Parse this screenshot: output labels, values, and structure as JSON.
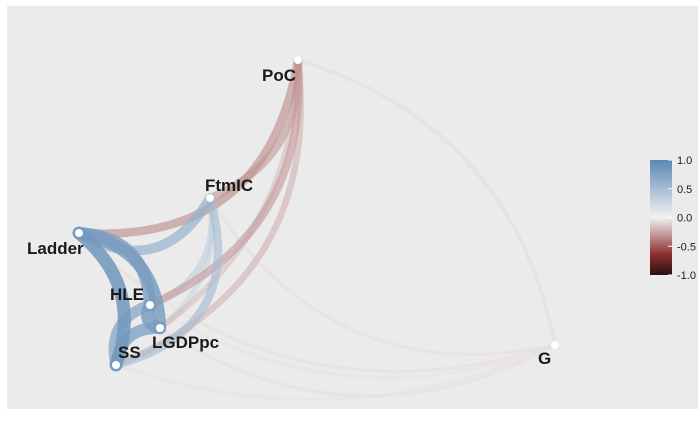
{
  "diagram": {
    "type": "correlation-network",
    "nodes": [
      {
        "id": "PoC",
        "label": "PoC"
      },
      {
        "id": "FtmIC",
        "label": "FtmIC"
      },
      {
        "id": "Ladder",
        "label": "Ladder"
      },
      {
        "id": "HLE",
        "label": "HLE"
      },
      {
        "id": "LGDPpc",
        "label": "LGDPpc"
      },
      {
        "id": "SS",
        "label": "SS"
      },
      {
        "id": "G",
        "label": "G"
      }
    ],
    "edges": [
      {
        "from": "Ladder",
        "to": "SS",
        "r": 0.85
      },
      {
        "from": "Ladder",
        "to": "HLE",
        "r": 0.78
      },
      {
        "from": "Ladder",
        "to": "LGDPpc",
        "r": 0.8
      },
      {
        "from": "Ladder",
        "to": "FtmIC",
        "r": 0.6
      },
      {
        "from": "Ladder",
        "to": "PoC",
        "r": -0.5
      },
      {
        "from": "HLE",
        "to": "SS",
        "r": 0.7
      },
      {
        "from": "HLE",
        "to": "LGDPpc",
        "r": 0.8
      },
      {
        "from": "LGDPpc",
        "to": "SS",
        "r": 0.75
      },
      {
        "from": "SS",
        "to": "FtmIC",
        "r": 0.5
      },
      {
        "from": "HLE",
        "to": "FtmIC",
        "r": 0.35
      },
      {
        "from": "LGDPpc",
        "to": "FtmIC",
        "r": 0.3
      },
      {
        "from": "HLE",
        "to": "PoC",
        "r": -0.45
      },
      {
        "from": "SS",
        "to": "PoC",
        "r": -0.35
      },
      {
        "from": "LGDPpc",
        "to": "PoC",
        "r": -0.3
      },
      {
        "from": "FtmIC",
        "to": "PoC",
        "r": -0.45
      },
      {
        "from": "PoC",
        "to": "G",
        "r": -0.15
      },
      {
        "from": "FtmIC",
        "to": "G",
        "r": -0.12
      },
      {
        "from": "Ladder",
        "to": "G",
        "r": -0.12
      },
      {
        "from": "HLE",
        "to": "G",
        "r": -0.1
      },
      {
        "from": "LGDPpc",
        "to": "G",
        "r": -0.12
      },
      {
        "from": "SS",
        "to": "G",
        "r": -0.1
      }
    ]
  },
  "legend": {
    "ticks": [
      "1.0",
      "0.5",
      "0.0",
      "-0.5",
      "-1.0"
    ],
    "range": [
      -1.0,
      1.0
    ],
    "colors": {
      "positive": "#5b87b4",
      "zero": "#f2f2f2",
      "negative": "#8c2f2f",
      "extreme_negative": "#2b1010"
    }
  }
}
